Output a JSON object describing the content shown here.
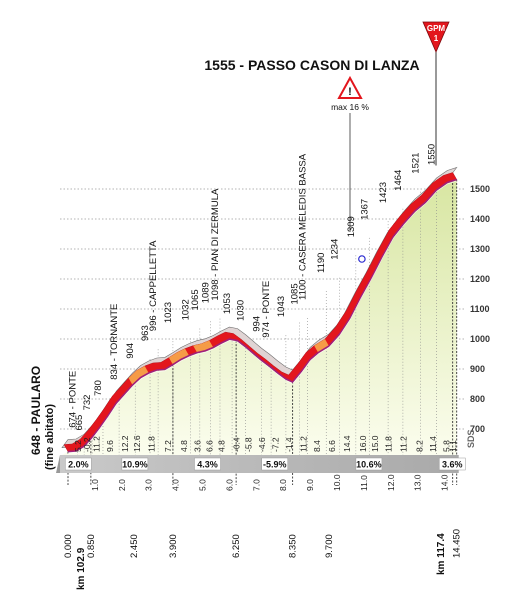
{
  "chart_data": {
    "type": "area",
    "title": "1555 - PASSO CASON DI LANZA",
    "start_place": "648 - PAULARO",
    "start_note": "(fine abitato)",
    "summit_badge": {
      "line1": "GPM",
      "line2": "1"
    },
    "steep_badge": "max 16 %",
    "watermark": "SDS",
    "ylim": [
      600,
      1560
    ],
    "yticks": [
      "700",
      "800",
      "900",
      "1000",
      "1100",
      "1200",
      "1300",
      "1400",
      "1500"
    ],
    "profile_x": [
      0.0,
      0.3,
      0.6,
      0.9,
      1.2,
      1.5,
      1.8,
      2.1,
      2.4,
      2.7,
      3.0,
      3.3,
      3.6,
      3.9,
      4.2,
      4.5,
      4.8,
      5.1,
      5.4,
      5.7,
      6.0,
      6.3,
      6.6,
      6.9,
      7.2,
      7.5,
      7.8,
      8.1,
      8.35,
      8.7,
      9.0,
      9.3,
      9.7,
      10.1,
      10.5,
      10.9,
      11.3,
      11.7,
      12.1,
      12.5,
      12.9,
      13.3,
      13.7,
      14.1,
      14.45
    ],
    "profile_y": [
      648,
      650,
      666,
      696,
      731,
      769,
      810,
      840,
      870,
      895,
      910,
      920,
      922,
      938,
      955,
      968,
      978,
      984,
      995,
      1010,
      1023,
      1018,
      998,
      975,
      952,
      932,
      910,
      890,
      880,
      918,
      955,
      978,
      1000,
      1040,
      1095,
      1165,
      1230,
      1300,
      1365,
      1410,
      1450,
      1480,
      1520,
      1545,
      1555
    ],
    "km_ticks": [
      "1.0",
      "2.0",
      "3.0",
      "4.0",
      "5.0",
      "6.0",
      "7.0",
      "8.0",
      "9.0",
      "10.0",
      "11.0",
      "12.0",
      "13.0",
      "14.0"
    ],
    "km_ticks_x": [
      1,
      2,
      3,
      4,
      5,
      6,
      7,
      8,
      9,
      10,
      11,
      12,
      13,
      14
    ],
    "waypoints": [
      {
        "km": 0.35,
        "label": "674 - PONTE",
        "alt": 674
      },
      {
        "km": 0.6,
        "label": "665",
        "alt": 665
      },
      {
        "km": 0.9,
        "label": "732",
        "alt": 732
      },
      {
        "km": 1.3,
        "label": "780",
        "alt": 780
      },
      {
        "km": 1.9,
        "label": "834 - TORNANTE",
        "alt": 834
      },
      {
        "km": 2.5,
        "label": "904",
        "alt": 904
      },
      {
        "km": 3.05,
        "label": "963",
        "alt": 963
      },
      {
        "km": 3.35,
        "label": "996 - CAPPELLETTA",
        "alt": 996
      },
      {
        "km": 3.9,
        "label": "1023",
        "alt": 1023
      },
      {
        "km": 4.55,
        "label": "1032",
        "alt": 1032
      },
      {
        "km": 4.9,
        "label": "1065",
        "alt": 1065
      },
      {
        "km": 5.3,
        "label": "1089",
        "alt": 1089
      },
      {
        "km": 5.65,
        "label": "1098 - PIAN DI ZERMULA",
        "alt": 1098
      },
      {
        "km": 6.1,
        "label": "1053",
        "alt": 1053
      },
      {
        "km": 6.6,
        "label": "1030",
        "alt": 1030
      },
      {
        "km": 7.2,
        "label": "994",
        "alt": 994
      },
      {
        "km": 7.55,
        "label": "974 - PONTE",
        "alt": 974
      },
      {
        "km": 8.1,
        "label": "1043",
        "alt": 1043
      },
      {
        "km": 8.6,
        "label": "1085",
        "alt": 1085
      },
      {
        "km": 8.9,
        "label": "1100 - CASERA MELEDIS BASSA",
        "alt": 1100
      },
      {
        "km": 9.6,
        "label": "1190",
        "alt": 1190
      },
      {
        "km": 10.1,
        "label": "1234",
        "alt": 1234
      },
      {
        "km": 10.7,
        "label": "1309",
        "alt": 1309
      },
      {
        "km": 11.2,
        "label": "1367",
        "alt": 1367
      },
      {
        "km": 11.9,
        "label": "1423",
        "alt": 1423
      },
      {
        "km": 12.45,
        "label": "1464",
        "alt": 1464
      },
      {
        "km": 13.1,
        "label": "1521",
        "alt": 1521
      },
      {
        "km": 13.7,
        "label": "1550",
        "alt": 1550
      }
    ],
    "gradients": [
      {
        "km": 0.4,
        "value": "5.2"
      },
      {
        "km": 0.75,
        "value": "-0.2"
      },
      {
        "km": 1.1,
        "value": "11.2"
      },
      {
        "km": 1.6,
        "value": "9.6"
      },
      {
        "km": 2.15,
        "value": "12.2"
      },
      {
        "km": 2.6,
        "value": "12.6"
      },
      {
        "km": 3.15,
        "value": "11.8"
      },
      {
        "km": 3.75,
        "value": "7.2"
      },
      {
        "km": 4.35,
        "value": "4.8"
      },
      {
        "km": 4.85,
        "value": "3.6"
      },
      {
        "km": 5.3,
        "value": "6.6"
      },
      {
        "km": 5.75,
        "value": "4.8"
      },
      {
        "km": 6.3,
        "value": "-0.4"
      },
      {
        "km": 6.75,
        "value": "-5.8"
      },
      {
        "km": 7.25,
        "value": "-4.6"
      },
      {
        "km": 7.75,
        "value": "-7.2"
      },
      {
        "km": 8.25,
        "value": "-1.4"
      },
      {
        "km": 8.8,
        "value": "11.2"
      },
      {
        "km": 9.3,
        "value": "8.4"
      },
      {
        "km": 9.85,
        "value": "6.6"
      },
      {
        "km": 10.4,
        "value": "14.4"
      },
      {
        "km": 11.0,
        "value": "16.0"
      },
      {
        "km": 11.45,
        "value": "15.0"
      },
      {
        "km": 11.95,
        "value": "11.8"
      },
      {
        "km": 12.5,
        "value": "11.2"
      },
      {
        "km": 13.1,
        "value": "8.2"
      },
      {
        "km": 13.6,
        "value": "11.4"
      },
      {
        "km": 14.1,
        "value": "5.8"
      },
      {
        "km": 14.35,
        "value": "1.1"
      }
    ],
    "averages": [
      {
        "km": 0.2,
        "value": "2.0%"
      },
      {
        "km": 2.3,
        "value": "10.9%"
      },
      {
        "km": 5.0,
        "value": "4.3%"
      },
      {
        "km": 7.5,
        "value": "-5.9%"
      },
      {
        "km": 11.0,
        "value": "10.6%"
      },
      {
        "km": 14.1,
        "value": "3.6%"
      }
    ],
    "segments_km": [
      0.0,
      0.85,
      3.9,
      6.25,
      8.35,
      14.3,
      14.45
    ],
    "distance_labels": [
      {
        "km": 0.0,
        "value": "0.000"
      },
      {
        "km": 0.85,
        "value": "0.850"
      },
      {
        "km": 2.45,
        "value": "2.450"
      },
      {
        "km": 3.9,
        "value": "3.900"
      },
      {
        "km": 6.25,
        "value": "6.250"
      },
      {
        "km": 8.35,
        "value": "8.350"
      },
      {
        "km": 9.7,
        "value": "9.700"
      },
      {
        "km": 14.45,
        "value": "14.450"
      }
    ],
    "km_start": "km 102.9",
    "km_end": "km 117.4"
  }
}
